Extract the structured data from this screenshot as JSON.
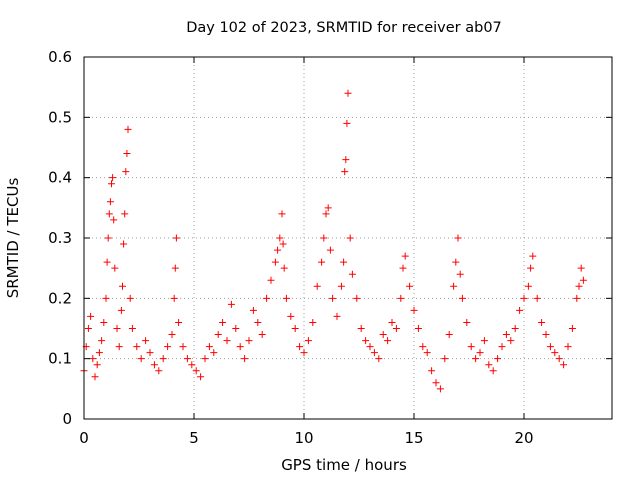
{
  "chart_data": {
    "type": "scatter",
    "title": "Day 102 of 2023, SRMTID for receiver ab07",
    "xlabel": "GPS time / hours",
    "ylabel": "SRMTID / TECUs",
    "xlim": [
      0,
      24
    ],
    "ylim": [
      0,
      0.6
    ],
    "xticks": [
      0,
      5,
      10,
      15,
      20
    ],
    "yticks": [
      0,
      0.1,
      0.2,
      0.3,
      0.4,
      0.5,
      0.6
    ],
    "xtick_labels": [
      "0",
      "5",
      "10",
      "15",
      "20"
    ],
    "ytick_labels": [
      "0",
      "0.1",
      "0.2",
      "0.3",
      "0.4",
      "0.5",
      "0.6"
    ],
    "grid": true,
    "marker": "+",
    "color": "#ff0000",
    "series": [
      {
        "name": "SRMTID",
        "x": [
          0.0,
          0.1,
          0.2,
          0.3,
          0.4,
          0.5,
          0.6,
          0.7,
          0.8,
          0.9,
          1.0,
          1.05,
          1.1,
          1.15,
          1.2,
          1.25,
          1.3,
          1.35,
          1.4,
          1.5,
          1.6,
          1.7,
          1.75,
          1.8,
          1.85,
          1.9,
          1.95,
          2.0,
          2.1,
          2.2,
          2.4,
          2.6,
          2.8,
          3.0,
          3.2,
          3.4,
          3.6,
          3.8,
          4.0,
          4.1,
          4.15,
          4.2,
          4.3,
          4.5,
          4.7,
          4.9,
          5.1,
          5.3,
          5.5,
          5.7,
          5.9,
          6.1,
          6.3,
          6.5,
          6.7,
          6.9,
          7.1,
          7.3,
          7.5,
          7.7,
          7.9,
          8.1,
          8.3,
          8.5,
          8.7,
          8.8,
          8.9,
          9.0,
          9.05,
          9.1,
          9.2,
          9.4,
          9.6,
          9.8,
          10.0,
          10.2,
          10.4,
          10.6,
          10.8,
          10.9,
          11.0,
          11.1,
          11.2,
          11.3,
          11.5,
          11.7,
          11.8,
          11.85,
          11.9,
          11.95,
          12.0,
          12.1,
          12.2,
          12.4,
          12.6,
          12.8,
          13.0,
          13.2,
          13.4,
          13.6,
          13.8,
          14.0,
          14.2,
          14.4,
          14.5,
          14.6,
          14.8,
          15.0,
          15.2,
          15.4,
          15.6,
          15.8,
          16.0,
          16.2,
          16.4,
          16.6,
          16.8,
          16.9,
          17.0,
          17.1,
          17.2,
          17.4,
          17.6,
          17.8,
          18.0,
          18.2,
          18.4,
          18.6,
          18.8,
          19.0,
          19.2,
          19.4,
          19.6,
          19.8,
          20.0,
          20.2,
          20.3,
          20.4,
          20.6,
          20.8,
          21.0,
          21.2,
          21.4,
          21.6,
          21.8,
          22.0,
          22.2,
          22.4,
          22.5,
          22.6,
          22.7
        ],
        "y": [
          0.08,
          0.12,
          0.15,
          0.17,
          0.1,
          0.07,
          0.09,
          0.11,
          0.13,
          0.16,
          0.2,
          0.26,
          0.3,
          0.34,
          0.36,
          0.39,
          0.4,
          0.33,
          0.25,
          0.15,
          0.12,
          0.18,
          0.22,
          0.29,
          0.34,
          0.41,
          0.44,
          0.48,
          0.2,
          0.15,
          0.12,
          0.1,
          0.13,
          0.11,
          0.09,
          0.08,
          0.1,
          0.12,
          0.14,
          0.2,
          0.25,
          0.3,
          0.16,
          0.12,
          0.1,
          0.09,
          0.08,
          0.07,
          0.1,
          0.12,
          0.11,
          0.14,
          0.16,
          0.13,
          0.19,
          0.15,
          0.12,
          0.1,
          0.13,
          0.18,
          0.16,
          0.14,
          0.2,
          0.23,
          0.26,
          0.28,
          0.3,
          0.34,
          0.29,
          0.25,
          0.2,
          0.17,
          0.15,
          0.12,
          0.11,
          0.13,
          0.16,
          0.22,
          0.26,
          0.3,
          0.34,
          0.35,
          0.28,
          0.2,
          0.17,
          0.22,
          0.26,
          0.41,
          0.43,
          0.49,
          0.54,
          0.3,
          0.24,
          0.2,
          0.15,
          0.13,
          0.12,
          0.11,
          0.1,
          0.14,
          0.13,
          0.16,
          0.15,
          0.2,
          0.25,
          0.27,
          0.22,
          0.18,
          0.15,
          0.12,
          0.11,
          0.08,
          0.06,
          0.05,
          0.1,
          0.14,
          0.22,
          0.26,
          0.3,
          0.24,
          0.2,
          0.16,
          0.12,
          0.1,
          0.11,
          0.13,
          0.09,
          0.08,
          0.1,
          0.12,
          0.14,
          0.13,
          0.15,
          0.18,
          0.2,
          0.22,
          0.25,
          0.27,
          0.2,
          0.16,
          0.14,
          0.12,
          0.11,
          0.1,
          0.09,
          0.12,
          0.15,
          0.2,
          0.22,
          0.25,
          0.23
        ]
      }
    ]
  }
}
